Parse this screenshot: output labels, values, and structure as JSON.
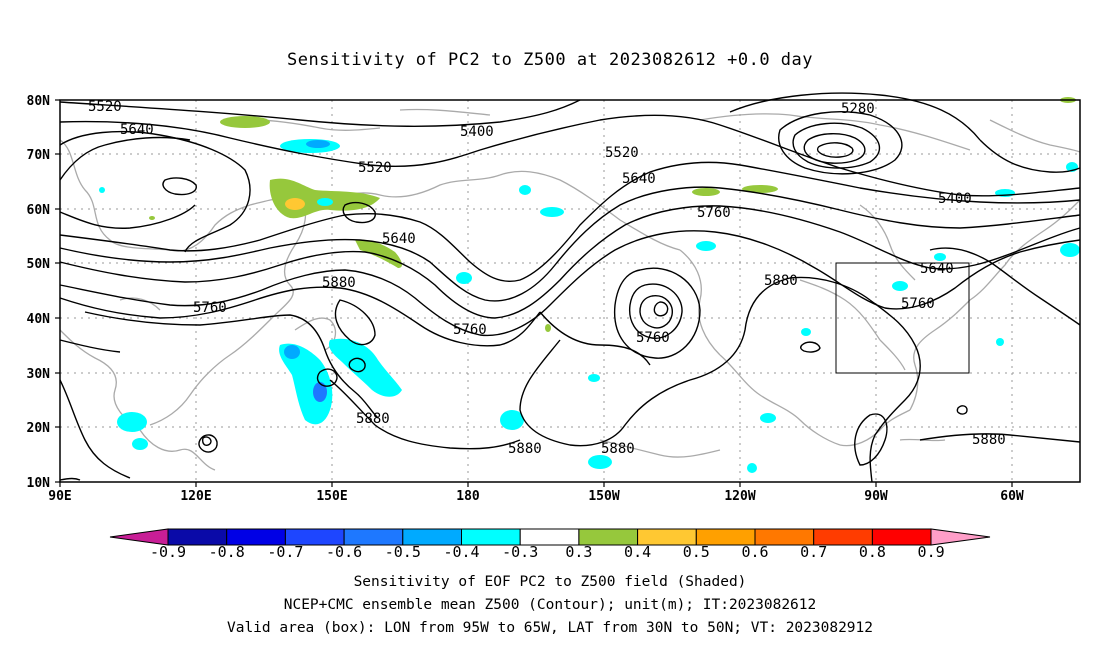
{
  "title": "Sensitivity of PC2 to Z500 at 2023082612 +0.0 day",
  "map": {
    "lat_labels": [
      "80N",
      "70N",
      "60N",
      "50N",
      "40N",
      "30N",
      "20N",
      "10N"
    ],
    "lon_labels": [
      "90E",
      "120E",
      "150E",
      "180",
      "150W",
      "120W",
      "90W",
      "60W"
    ],
    "contour_labels": [
      {
        "text": "5520",
        "id": "c5520a"
      },
      {
        "text": "5640",
        "id": "c5640a"
      },
      {
        "text": "5400",
        "id": "c5400a"
      },
      {
        "text": "5520",
        "id": "c5520b"
      },
      {
        "text": "5520",
        "id": "c5520c"
      },
      {
        "text": "5640",
        "id": "c5640b"
      },
      {
        "text": "5640",
        "id": "c5640c"
      },
      {
        "text": "5760",
        "id": "c5760a"
      },
      {
        "text": "5760",
        "id": "c5760b"
      },
      {
        "text": "5880",
        "id": "c5880a"
      },
      {
        "text": "5760",
        "id": "c5760c"
      },
      {
        "text": "5760",
        "id": "c5760d"
      },
      {
        "text": "5880",
        "id": "c5880b"
      },
      {
        "text": "5880",
        "id": "c5880c"
      },
      {
        "text": "5880",
        "id": "c5880d"
      },
      {
        "text": "5880",
        "id": "c5880e"
      },
      {
        "text": "5280",
        "id": "c5280"
      },
      {
        "text": "5400",
        "id": "c5400b"
      },
      {
        "text": "5640",
        "id": "c5640d"
      },
      {
        "text": "5760",
        "id": "c5760e"
      },
      {
        "text": "5880",
        "id": "c5880f"
      }
    ],
    "box": {
      "lon_min": "95W",
      "lon_max": "65W",
      "lat_min": "30N",
      "lat_max": "50N"
    }
  },
  "colorbar": {
    "labels": [
      "-0.9",
      "-0.8",
      "-0.7",
      "-0.6",
      "-0.5",
      "-0.4",
      "-0.3",
      "0.3",
      "0.4",
      "0.5",
      "0.6",
      "0.7",
      "0.8",
      "0.9"
    ],
    "colors": [
      "#0a0aa8",
      "#0000e6",
      "#1e46ff",
      "#1e78ff",
      "#00aaff",
      "#00ffff",
      "#ffffff",
      "#96c83c",
      "#ffc832",
      "#ffa000",
      "#ff7800",
      "#ff3c00",
      "#ff0000"
    ],
    "low_arrow_color": "#c81e96",
    "high_arrow_color": "#ff9ec8"
  },
  "footer": {
    "line1": "Sensitivity of EOF PC2 to Z500 field (Shaded)",
    "line2": "NCEP+CMC ensemble mean Z500 (Contour); unit(m); IT:2023082612",
    "line3": "Valid area (box): LON from 95W to 65W, LAT from 30N to 50N; VT: 2023082912"
  }
}
